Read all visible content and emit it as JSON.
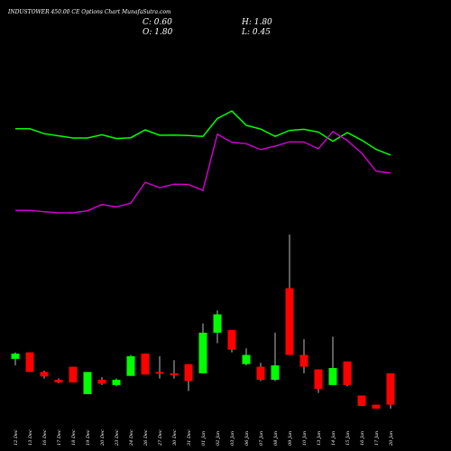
{
  "header": {
    "title": "INDUSTOWER 450.00  CE Options  Chart MunafaSutra.com",
    "c_label": "C: 0.60",
    "h_label": "H: 1.80",
    "o_label": "O: 1.80",
    "l_label": "L: 0.45"
  },
  "colors": {
    "background": "#000000",
    "up": "#00ff00",
    "down": "#ff0000",
    "wick": "#bbbbbb",
    "green_line": "#00ff00",
    "magenta_line": "#cc00cc"
  },
  "chart_data": {
    "type": "candlestick",
    "x": [
      "12 Dec",
      "13 Dec",
      "16 Dec",
      "17 Dec",
      "18 Dec",
      "19 Dec",
      "20 Dec",
      "23 Dec",
      "24 Dec",
      "26 Dec",
      "27 Dec",
      "30 Dec",
      "31 Dec",
      "01 Jan",
      "02 Jan",
      "03 Jan",
      "06 Jan",
      "07 Jan",
      "08 Jan",
      "09 Jan",
      "10 Jan",
      "13 Jan",
      "14 Jan",
      "15 Jan",
      "16 Jan",
      "17 Jan",
      "20 Jan"
    ],
    "ohlc": [
      {
        "open": 2.35,
        "high": 2.6,
        "low": 2.1,
        "close": 2.55
      },
      {
        "open": 2.6,
        "high": 2.6,
        "low": 1.85,
        "close": 1.85
      },
      {
        "open": 1.85,
        "high": 1.9,
        "low": 1.6,
        "close": 1.68
      },
      {
        "open": 1.55,
        "high": 1.6,
        "low": 1.42,
        "close": 1.45
      },
      {
        "open": 2.05,
        "high": 2.05,
        "low": 1.45,
        "close": 1.45
      },
      {
        "open": 1.0,
        "high": 1.85,
        "low": 1.0,
        "close": 1.85
      },
      {
        "open": 1.55,
        "high": 1.65,
        "low": 1.35,
        "close": 1.4
      },
      {
        "open": 1.35,
        "high": 1.6,
        "low": 1.3,
        "close": 1.55
      },
      {
        "open": 1.7,
        "high": 2.5,
        "low": 1.7,
        "close": 2.45
      },
      {
        "open": 2.55,
        "high": 2.55,
        "low": 1.75,
        "close": 1.75
      },
      {
        "open": 1.85,
        "high": 2.45,
        "low": 1.6,
        "close": 1.78
      },
      {
        "open": 1.8,
        "high": 2.3,
        "low": 1.6,
        "close": 1.72
      },
      {
        "open": 2.15,
        "high": 2.15,
        "low": 1.12,
        "close": 1.5
      },
      {
        "open": 1.8,
        "high": 3.7,
        "low": 1.8,
        "close": 3.35
      },
      {
        "open": 3.35,
        "high": 4.2,
        "low": 2.95,
        "close": 4.05
      },
      {
        "open": 3.45,
        "high": 3.45,
        "low": 2.6,
        "close": 2.7
      },
      {
        "open": 2.15,
        "high": 2.75,
        "low": 2.1,
        "close": 2.5
      },
      {
        "open": 2.05,
        "high": 2.2,
        "low": 1.5,
        "close": 1.55
      },
      {
        "open": 1.55,
        "high": 3.35,
        "low": 1.5,
        "close": 2.1
      },
      {
        "open": 5.05,
        "high": 7.1,
        "low": 2.5,
        "close": 2.5
      },
      {
        "open": 2.5,
        "high": 3.1,
        "low": 1.8,
        "close": 2.05
      },
      {
        "open": 1.95,
        "high": 1.95,
        "low": 1.05,
        "close": 1.2
      },
      {
        "open": 1.35,
        "high": 3.2,
        "low": 1.35,
        "close": 2.0
      },
      {
        "open": 2.25,
        "high": 2.25,
        "low": 1.3,
        "close": 1.35
      },
      {
        "open": 0.95,
        "high": 0.95,
        "low": 0.55,
        "close": 0.55
      },
      {
        "open": 0.6,
        "high": 0.6,
        "low": 0.45,
        "close": 0.45
      },
      {
        "open": 1.8,
        "high": 1.8,
        "low": 0.45,
        "close": 0.6
      }
    ],
    "lines": [
      {
        "color": "#00ff00",
        "values": [
          43.0,
          43.0,
          41.2,
          40.4,
          39.6,
          39.6,
          40.8,
          39.4,
          39.7,
          42.6,
          40.6,
          40.7,
          40.5,
          40.2,
          46.8,
          49.6,
          44.3,
          42.9,
          40.2,
          42.4,
          42.8,
          41.8,
          38.4,
          41.6,
          38.8,
          35.4,
          33.3
        ]
      },
      {
        "color": "#cc00cc",
        "values": [
          12.8,
          12.8,
          12.3,
          11.9,
          11.9,
          12.7,
          15.0,
          14.1,
          15.5,
          23.2,
          21.2,
          22.5,
          22.4,
          20.2,
          41.0,
          38.0,
          37.5,
          35.3,
          36.6,
          38.2,
          38.1,
          35.6,
          42.0,
          38.7,
          34.0,
          27.3,
          26.6
        ]
      }
    ]
  }
}
